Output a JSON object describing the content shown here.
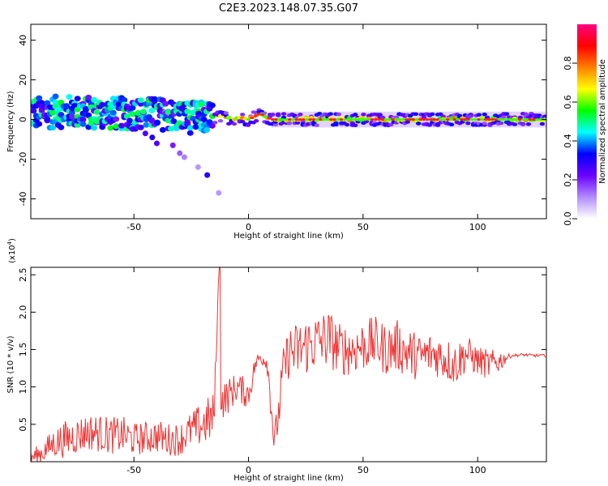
{
  "title": "C2E3.2023.148.07.35.G07",
  "chart_data": [
    {
      "type": "heatmap",
      "xlabel": "Height of straight line (km)",
      "ylabel": "Frequency (Hz)",
      "xlim": [
        -95,
        130
      ],
      "ylim": [
        -50,
        48
      ],
      "xticks": [
        -50,
        0,
        50,
        100
      ],
      "yticks": [
        -40,
        -20,
        0,
        20,
        40
      ],
      "colorbar": {
        "label": "Normalized spectral amplitude",
        "range": [
          0.0,
          1.0
        ],
        "ticks": [
          0.0,
          0.2,
          0.4,
          0.6,
          0.8
        ],
        "colors": [
          "#ffffff",
          "#b18cff",
          "#6a00ff",
          "#0000ff",
          "#00ffff",
          "#00ff00",
          "#ffff00",
          "#ff8000",
          "#ff0000",
          "#ff0080"
        ]
      },
      "ridge": [
        {
          "x": -95,
          "f": 3
        },
        {
          "x": -80,
          "f": 4
        },
        {
          "x": -60,
          "f": 3
        },
        {
          "x": -40,
          "f": 3
        },
        {
          "x": -25,
          "f": 1
        },
        {
          "x": -10,
          "f": 1
        },
        {
          "x": 0,
          "f": 0
        },
        {
          "x": 5,
          "f": 3
        },
        {
          "x": 10,
          "f": 0
        },
        {
          "x": 50,
          "f": 0
        },
        {
          "x": 100,
          "f": 0
        },
        {
          "x": 130,
          "f": 0
        }
      ],
      "secondary_track": [
        {
          "x": -45,
          "f": -7,
          "amp": 0.25
        },
        {
          "x": -42,
          "f": -9,
          "amp": 0.3
        },
        {
          "x": -40,
          "f": -12,
          "amp": 0.25
        },
        {
          "x": -33,
          "f": -13,
          "amp": 0.2
        },
        {
          "x": -30,
          "f": -17,
          "amp": 0.15
        },
        {
          "x": -28,
          "f": -19,
          "amp": 0.12
        },
        {
          "x": -22,
          "f": -24,
          "amp": 0.1
        },
        {
          "x": -18,
          "f": -28,
          "amp": 0.3
        },
        {
          "x": -13,
          "f": -37,
          "amp": 0.1
        }
      ]
    },
    {
      "type": "line",
      "xlabel": "Height of straight line (km)",
      "ylabel": "SNR (10 * v/v)",
      "multiplier_label": "(x10",
      "multiplier_exp": "4",
      "xlim": [
        -95,
        130
      ],
      "ylim": [
        0,
        2.6
      ],
      "xticks": [
        -50,
        0,
        50,
        100
      ],
      "yticks": [
        0.5,
        1.0,
        1.5,
        2.0,
        2.5
      ],
      "series": [
        {
          "color": "#ee3333",
          "x": [
            -95,
            -90,
            -85,
            -80,
            -75,
            -70,
            -65,
            -60,
            -55,
            -50,
            -45,
            -40,
            -35,
            -30,
            -25,
            -20,
            -15,
            -13,
            -12,
            -10,
            -5,
            0,
            3,
            5,
            8,
            10,
            11,
            13,
            15,
            18,
            20,
            25,
            30,
            35,
            40,
            45,
            50,
            55,
            60,
            65,
            70,
            75,
            80,
            85,
            90,
            95,
            100,
            105,
            110,
            113,
            115,
            120,
            125,
            130
          ],
          "y": [
            0.05,
            0.12,
            0.25,
            0.3,
            0.35,
            0.4,
            0.38,
            0.35,
            0.36,
            0.3,
            0.32,
            0.34,
            0.3,
            0.3,
            0.42,
            0.5,
            0.6,
            2.5,
            0.8,
            0.85,
            1.0,
            0.9,
            1.3,
            1.4,
            1.35,
            0.8,
            0.25,
            0.6,
            1.2,
            1.5,
            1.45,
            1.55,
            1.6,
            1.65,
            1.5,
            1.5,
            1.55,
            1.6,
            1.5,
            1.55,
            1.45,
            1.4,
            1.45,
            1.4,
            1.3,
            1.45,
            1.35,
            1.3,
            1.35,
            1.4,
            1.42,
            1.43,
            1.42,
            1.42
          ],
          "noise_amp": [
            0.1,
            0.15,
            0.2,
            0.25,
            0.25,
            0.25,
            0.25,
            0.25,
            0.25,
            0.22,
            0.22,
            0.22,
            0.22,
            0.22,
            0.25,
            0.3,
            0.35,
            0.0,
            0.25,
            0.25,
            0.2,
            0.2,
            0.12,
            0.1,
            0.12,
            0.3,
            0.1,
            0.3,
            0.3,
            0.35,
            0.4,
            0.4,
            0.4,
            0.4,
            0.35,
            0.35,
            0.35,
            0.35,
            0.35,
            0.35,
            0.35,
            0.3,
            0.3,
            0.3,
            0.3,
            0.25,
            0.2,
            0.2,
            0.15,
            0.04,
            0.02,
            0.02,
            0.02,
            0.02
          ]
        }
      ]
    }
  ]
}
